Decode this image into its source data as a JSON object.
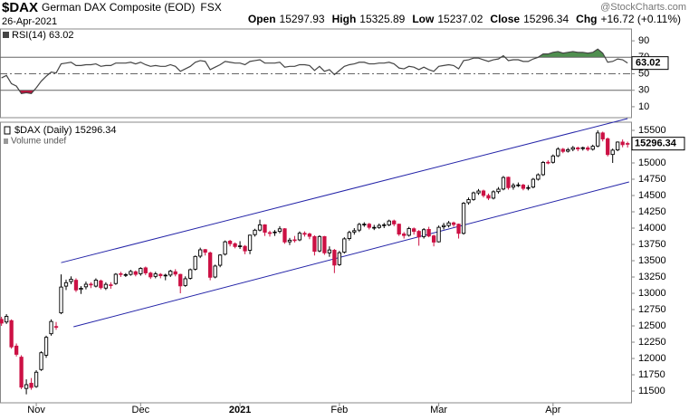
{
  "header": {
    "symbol": "$DAX",
    "name": "German DAX Composite (EOD)",
    "exchange": "FSX",
    "date": "26-Apr-2021",
    "quote": [
      {
        "label": "Open",
        "value": "15297.93"
      },
      {
        "label": "High",
        "value": "15325.89"
      },
      {
        "label": "Low",
        "value": "15237.02"
      },
      {
        "label": "Close",
        "value": "15296.34"
      },
      {
        "label": "Chg",
        "value": "+16.72 (+0.11%)"
      }
    ],
    "watermark": "@StockCharts.com"
  },
  "chart_data": [
    {
      "type": "line",
      "legend_label": "RSI(14) 63.02",
      "last_value_label": "63.02",
      "color": "#444444",
      "values": [
        45,
        48,
        38,
        35,
        26,
        27,
        26,
        33,
        41,
        47,
        52,
        51,
        62,
        63,
        64,
        60,
        60,
        61,
        61,
        62,
        59,
        60,
        60,
        63,
        63,
        63,
        64,
        62,
        64,
        61,
        59,
        60,
        59,
        59,
        61,
        59,
        53,
        56,
        59,
        64,
        66,
        65,
        55,
        58,
        61,
        65,
        64,
        63,
        63,
        61,
        65,
        66,
        67,
        63,
        63,
        63,
        64,
        58,
        59,
        59,
        61,
        61,
        60,
        54,
        59,
        53,
        55,
        49,
        54,
        59,
        61,
        62,
        64,
        64,
        62,
        62,
        63,
        63,
        64,
        62,
        57,
        56,
        59,
        58,
        55,
        58,
        55,
        53,
        59,
        60,
        61,
        60,
        56,
        66,
        67,
        69,
        69,
        67,
        65,
        67,
        68,
        72,
        66,
        67,
        67,
        65,
        65,
        68,
        70,
        74,
        74,
        76,
        77,
        75,
        76,
        77,
        76,
        76,
        75,
        76,
        80,
        75,
        64,
        65,
        68,
        67,
        63.02
      ],
      "xlim": [
        -0.3,
        126.7
      ],
      "ylim": [
        0,
        100
      ],
      "yticks": [
        90,
        70,
        50,
        30,
        10
      ],
      "overbought": 70,
      "oversold": 30,
      "centerline": 50,
      "overbought_color": "#4f8f4f",
      "oversold_color": "#c0103a"
    },
    {
      "type": "candlestick",
      "legend_label": "$DAX (Daily) 15296.34",
      "sublabel": "Volume undef",
      "last_value_label": "15296.34",
      "open": [
        12600,
        12560,
        12580,
        12190,
        12020,
        11540,
        11620,
        11570,
        11830,
        12050,
        12380,
        12490,
        12700,
        13110,
        13180,
        13200,
        13060,
        13100,
        13140,
        13110,
        13190,
        13080,
        13130,
        13150,
        13300,
        13280,
        13290,
        13330,
        13300,
        13390,
        13310,
        13260,
        13290,
        13270,
        13280,
        13330,
        13290,
        13120,
        13230,
        13370,
        13570,
        13670,
        13620,
        13250,
        13430,
        13600,
        13800,
        13760,
        13720,
        13720,
        13660,
        13900,
        13970,
        14050,
        13930,
        13930,
        13950,
        13990,
        13790,
        13820,
        13820,
        13920,
        13910,
        13870,
        13650,
        13870,
        13620,
        13660,
        13440,
        13630,
        13840,
        13940,
        13970,
        14060,
        14060,
        14010,
        14010,
        14040,
        14050,
        14110,
        14060,
        13910,
        13890,
        13990,
        13950,
        13870,
        13980,
        13880,
        13790,
        14020,
        14040,
        14080,
        14060,
        13920,
        14390,
        14440,
        14540,
        14570,
        14500,
        14460,
        14560,
        14600,
        14780,
        14630,
        14660,
        14660,
        14610,
        14630,
        14750,
        14820,
        15010,
        15010,
        15110,
        15210,
        15180,
        15210,
        15230,
        15220,
        15230,
        15210,
        15260,
        15460,
        15370,
        15130,
        15200,
        15320,
        15297.93
      ],
      "high": [
        12640,
        12680,
        12600,
        12230,
        12050,
        11680,
        11700,
        11820,
        12110,
        12350,
        12600,
        12560,
        13290,
        13210,
        13260,
        13230,
        13110,
        13180,
        13170,
        13230,
        13210,
        13170,
        13170,
        13310,
        13330,
        13310,
        13360,
        13350,
        13400,
        13410,
        13330,
        13330,
        13310,
        13300,
        13360,
        13370,
        13300,
        13260,
        13380,
        13580,
        13700,
        13680,
        13640,
        13440,
        13600,
        13810,
        13820,
        13780,
        13800,
        13740,
        13900,
        13990,
        14130,
        14060,
        13960,
        13970,
        14030,
        14000,
        13850,
        13880,
        13950,
        13950,
        13930,
        13890,
        13890,
        13880,
        13720,
        13680,
        13650,
        13860,
        13960,
        14000,
        14080,
        14090,
        14080,
        14050,
        14070,
        14080,
        14130,
        14130,
        14070,
        13940,
        14020,
        14010,
        13970,
        14000,
        14020,
        13900,
        14040,
        14080,
        14110,
        14100,
        14070,
        14400,
        14470,
        14560,
        14600,
        14590,
        14530,
        14580,
        14630,
        14800,
        14790,
        14690,
        14700,
        14680,
        14660,
        14770,
        14840,
        15030,
        15040,
        15130,
        15240,
        15230,
        15230,
        15260,
        15250,
        15250,
        15260,
        15280,
        15500,
        15480,
        15390,
        15220,
        15330,
        15360,
        15325.89
      ],
      "low": [
        12500,
        12530,
        12150,
        12030,
        11530,
        11450,
        11520,
        11550,
        11810,
        12010,
        12350,
        12440,
        12680,
        13050,
        13140,
        13020,
        12990,
        13060,
        13080,
        13090,
        13060,
        13050,
        13070,
        13130,
        13250,
        13250,
        13270,
        13260,
        13270,
        13280,
        13220,
        13230,
        13230,
        13200,
        13250,
        13260,
        13000,
        13100,
        13210,
        13350,
        13540,
        13580,
        13200,
        13230,
        13400,
        13580,
        13720,
        13690,
        13680,
        13600,
        13600,
        13870,
        13950,
        13880,
        13870,
        13880,
        13920,
        13760,
        13740,
        13780,
        13800,
        13870,
        13830,
        13580,
        13630,
        13590,
        13560,
        13310,
        13420,
        13610,
        13810,
        13900,
        13940,
        14020,
        13980,
        13970,
        13990,
        14000,
        14030,
        14030,
        13880,
        13840,
        13870,
        13900,
        13730,
        13840,
        13860,
        13720,
        13780,
        13980,
        14010,
        14020,
        13840,
        13900,
        14360,
        14420,
        14510,
        14470,
        14430,
        14440,
        14530,
        14580,
        14590,
        14590,
        14630,
        14580,
        14580,
        14610,
        14730,
        14800,
        14980,
        14990,
        15090,
        15150,
        15160,
        15180,
        15180,
        15190,
        15180,
        15190,
        15240,
        15330,
        15100,
        15000,
        15180,
        15240,
        15237.02
      ],
      "close": [
        12543,
        12646,
        12178,
        12064,
        11561,
        11598,
        11556,
        11789,
        12088,
        12324,
        12568,
        12480,
        13096,
        13163,
        13216,
        13052,
        13077,
        13139,
        13133,
        13202,
        13087,
        13137,
        13127,
        13292,
        13289,
        13286,
        13335,
        13291,
        13382,
        13313,
        13252,
        13298,
        13271,
        13278,
        13340,
        13295,
        13114,
        13223,
        13362,
        13565,
        13667,
        13630,
        13246,
        13418,
        13587,
        13790,
        13761,
        13718,
        13727,
        13651,
        13892,
        13968,
        14050,
        13937,
        13925,
        13940,
        13989,
        13788,
        13815,
        13816,
        13922,
        13906,
        13874,
        13644,
        13871,
        13621,
        13665,
        13433,
        13622,
        13835,
        13933,
        13961,
        14057,
        14060,
        14012,
        14011,
        14041,
        14050,
        14109,
        14064,
        13909,
        13887,
        13993,
        13950,
        13865,
        13976,
        13879,
        13786,
        14012,
        14040,
        14080,
        14056,
        13920,
        14381,
        14437,
        14541,
        14569,
        14502,
        14461,
        14557,
        14597,
        14776,
        14621,
        14657,
        14662,
        14610,
        14621,
        14749,
        14818,
        15008,
        15008,
        15107,
        15212,
        15177,
        15203,
        15234,
        15215,
        15234,
        15209,
        15255,
        15460,
        15368,
        15129,
        15196,
        15320,
        15280,
        15296.34
      ],
      "up_color": "#000000",
      "down_color": "#cc1144",
      "xlim": [
        -0.3,
        126.7
      ],
      "xticks": [
        {
          "value": 7,
          "label": "Nov"
        },
        {
          "value": 28,
          "label": "Dec"
        },
        {
          "value": 48,
          "label": "2021"
        },
        {
          "value": 68,
          "label": "Feb"
        },
        {
          "value": 88,
          "label": "Mar"
        },
        {
          "value": 111,
          "label": "Apr"
        }
      ],
      "ylim": [
        11320,
        15625
      ],
      "yticks": [
        11500,
        11750,
        12000,
        12250,
        12500,
        12750,
        13000,
        13250,
        13500,
        13750,
        14000,
        14250,
        14500,
        14750,
        15000,
        15500
      ],
      "trendlines": [
        {
          "x": [
            12,
            126
          ],
          "y": [
            13470,
            15680
          ],
          "color": "#2424a8"
        },
        {
          "x": [
            14.5,
            126.3
          ],
          "y": [
            12486,
            14708
          ],
          "color": "#2424a8"
        }
      ]
    }
  ]
}
